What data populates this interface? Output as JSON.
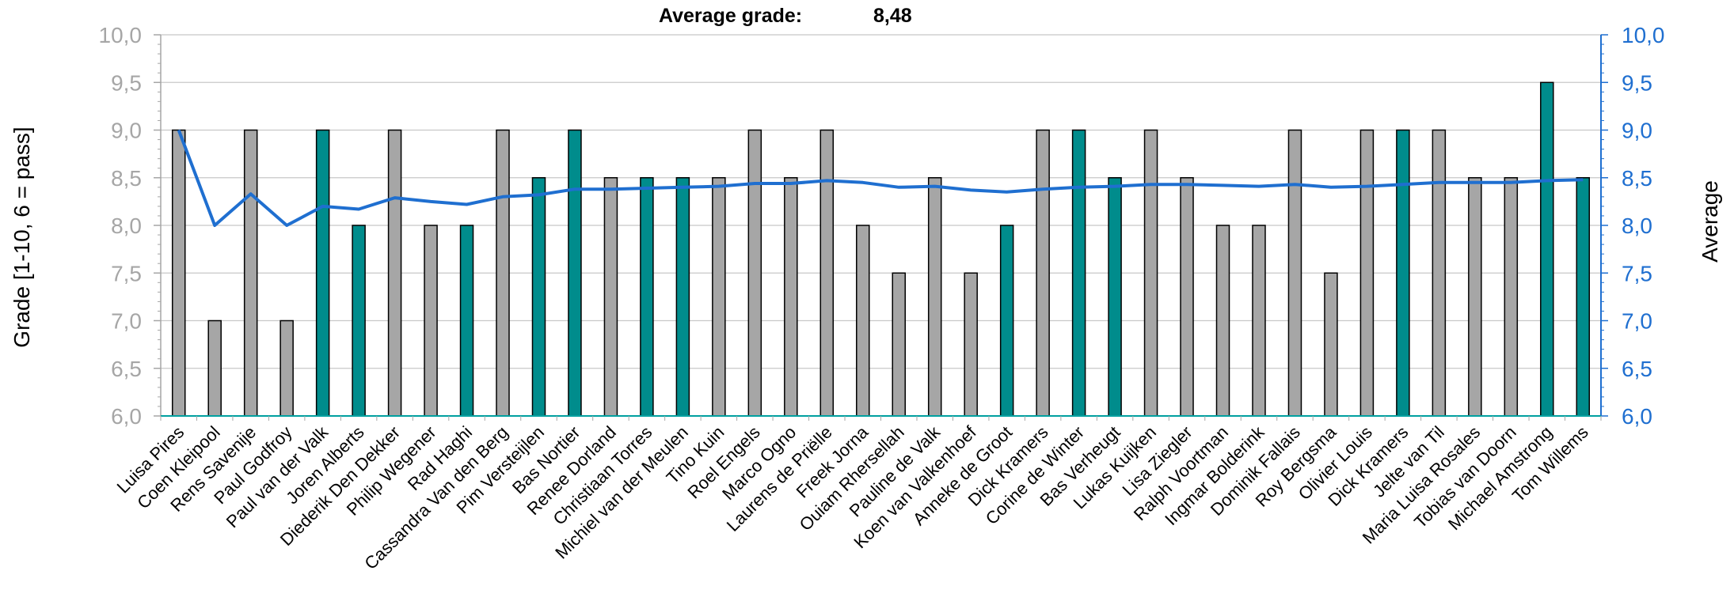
{
  "header": {
    "label": "Average grade:",
    "value": "8,48"
  },
  "chart_data": {
    "type": "bar",
    "ylabel": "Grade [1-10, 6 = pass]",
    "y2label": "Average",
    "ylim": [
      6.0,
      10.0
    ],
    "y2lim": [
      6.0,
      10.0
    ],
    "ytick_labels": [
      "6,0",
      "6,5",
      "7,0",
      "7,5",
      "8,0",
      "8,5",
      "9,0",
      "9,5",
      "10,0"
    ],
    "grid": true,
    "colors": {
      "grey_bar": "#a6a6a6",
      "teal_bar": "#008c8c",
      "average_line": "#1f6fd0",
      "right_axis": "#1f6fd0",
      "left_axis_text": "#a6a6a6",
      "bar_outline": "#000000"
    },
    "categories": [
      "Luisa Pires",
      "Coen Kleipool",
      "Rens Savenije",
      "Paul Godfroy",
      "Paul van der Valk",
      "Joren Alberts",
      "Diederik Den Dekker",
      "Philip Wegener",
      "Rad Haghi",
      "Cassandra Van den Berg",
      "Pim Versteijlen",
      "Bas Nortier",
      "Renee Dorland",
      "Christiaan Torres",
      "Michiel van der Meulen",
      "Tino Kuin",
      "Roel Engels",
      "Marco Ogno",
      "Laurens de Priëlle",
      "Freek Jorna",
      "Ouiam Rhersellah",
      "Pauline de Valk",
      "Koen van Valkenhoef",
      "Anneke de Groot",
      "Dick Kramers",
      "Corine de Winter",
      "Bas Verheugt",
      "Lukas Kuijken",
      "Lisa Ziegler",
      "Ralph Voortman",
      "Ingmar Bolderink",
      "Dominik Fallais",
      "Roy Bergsma",
      "Olivier Louis",
      "Dick Kramers",
      "Jelte van Til",
      "Maria Luisa Rosales",
      "Tobias van Doorn",
      "Michael Amstrong",
      "Tom Willems"
    ],
    "series": [
      {
        "values": [
          9.0,
          7.0,
          9.0,
          7.0,
          9.0,
          8.0,
          9.0,
          8.0,
          8.0,
          9.0,
          8.5,
          9.0,
          8.5,
          8.5,
          8.5,
          8.5,
          9.0,
          8.5,
          9.0,
          8.0,
          7.5,
          8.5,
          7.5,
          8.0,
          9.0,
          9.0,
          8.5,
          9.0,
          8.5,
          8.0,
          8.0,
          9.0,
          7.5,
          9.0,
          9.0,
          9.0,
          8.5,
          8.5,
          9.5,
          8.5
        ],
        "bar_colors": [
          "grey",
          "grey",
          "grey",
          "grey",
          "teal",
          "teal",
          "grey",
          "grey",
          "teal",
          "grey",
          "teal",
          "teal",
          "grey",
          "teal",
          "teal",
          "grey",
          "grey",
          "grey",
          "grey",
          "grey",
          "grey",
          "grey",
          "grey",
          "teal",
          "grey",
          "teal",
          "teal",
          "grey",
          "grey",
          "grey",
          "grey",
          "grey",
          "grey",
          "grey",
          "teal",
          "grey",
          "grey",
          "grey",
          "teal",
          "teal"
        ]
      },
      {
        "type": "line",
        "axis": "right",
        "values": [
          9.0,
          8.0,
          8.33,
          8.0,
          8.2,
          8.17,
          8.29,
          8.25,
          8.22,
          8.3,
          8.32,
          8.38,
          8.38,
          8.39,
          8.4,
          8.41,
          8.44,
          8.44,
          8.47,
          8.45,
          8.4,
          8.41,
          8.37,
          8.35,
          8.38,
          8.4,
          8.41,
          8.43,
          8.43,
          8.42,
          8.41,
          8.43,
          8.4,
          8.41,
          8.43,
          8.45,
          8.45,
          8.45,
          8.47,
          8.48
        ]
      }
    ]
  }
}
